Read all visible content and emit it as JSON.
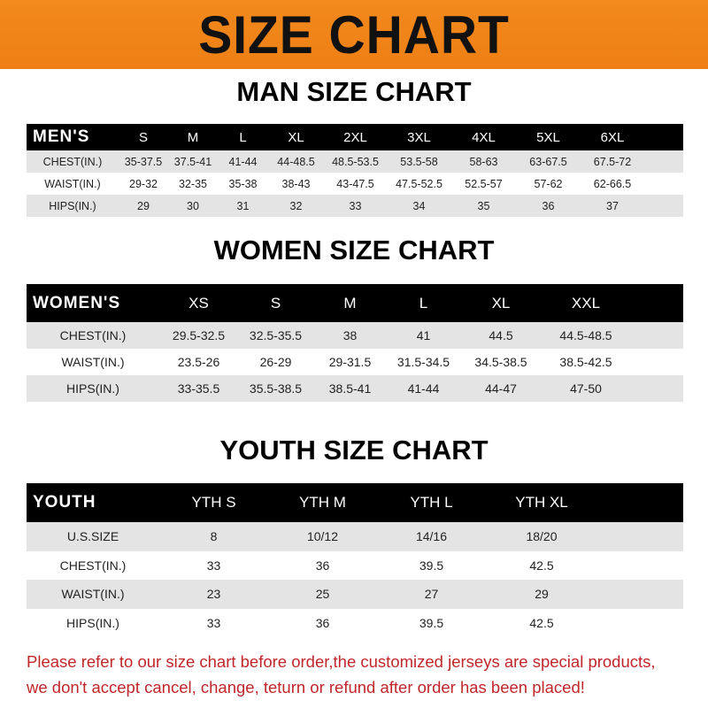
{
  "banner": "SIZE CHART",
  "men": {
    "title": "MAN SIZE CHART",
    "header": [
      "MEN'S",
      "S",
      "M",
      "L",
      "XL",
      "2XL",
      "3XL",
      "4XL",
      "5XL",
      "6XL"
    ],
    "rows": [
      [
        "CHEST(IN.)",
        "35-37.5",
        "37.5-41",
        "41-44",
        "44-48.5",
        "48.5-53.5",
        "53.5-58",
        "58-63",
        "63-67.5",
        "67.5-72"
      ],
      [
        "WAIST(IN.)",
        "29-32",
        "32-35",
        "35-38",
        "38-43",
        "43-47.5",
        "47.5-52.5",
        "52.5-57",
        "57-62",
        "62-66.5"
      ],
      [
        "HIPS(IN.)",
        "29",
        "30",
        "31",
        "32",
        "33",
        "34",
        "35",
        "36",
        "37"
      ]
    ]
  },
  "women": {
    "title": "WOMEN SIZE CHART",
    "header": [
      "WOMEN'S",
      "XS",
      "S",
      "M",
      "L",
      "XL",
      "XXL"
    ],
    "rows": [
      [
        "CHEST(IN.)",
        "29.5-32.5",
        "32.5-35.5",
        "38",
        "41",
        "44.5",
        "44.5-48.5"
      ],
      [
        "WAIST(IN.)",
        "23.5-26",
        "26-29",
        "29-31.5",
        "31.5-34.5",
        "34.5-38.5",
        "38.5-42.5"
      ],
      [
        "HIPS(IN.)",
        "33-35.5",
        "35.5-38.5",
        "38.5-41",
        "41-44",
        "44-47",
        "47-50"
      ]
    ]
  },
  "youth": {
    "title": "YOUTH SIZE CHART",
    "header": [
      "YOUTH",
      "YTH S",
      "YTH M",
      "YTH L",
      "YTH XL"
    ],
    "rows": [
      [
        "U.S.SIZE",
        "8",
        "10/12",
        "14/16",
        "18/20"
      ],
      [
        "CHEST(IN.)",
        "33",
        "36",
        "39.5",
        "42.5"
      ],
      [
        "WAIST(IN.)",
        "23",
        "25",
        "27",
        "29"
      ],
      [
        "HIPS(IN.)",
        "33",
        "36",
        "39.5",
        "42.5"
      ]
    ]
  },
  "note": {
    "line1": "Please refer to our size chart before order,the customized jerseys are special products,",
    "line2": "we don't accept cancel, change, teturn or refund after order has been placed!"
  },
  "colors": {
    "banner": "#f08a1e",
    "header_row": "#000000",
    "stripe": "#e4e4e4",
    "note": "#c0262a"
  }
}
